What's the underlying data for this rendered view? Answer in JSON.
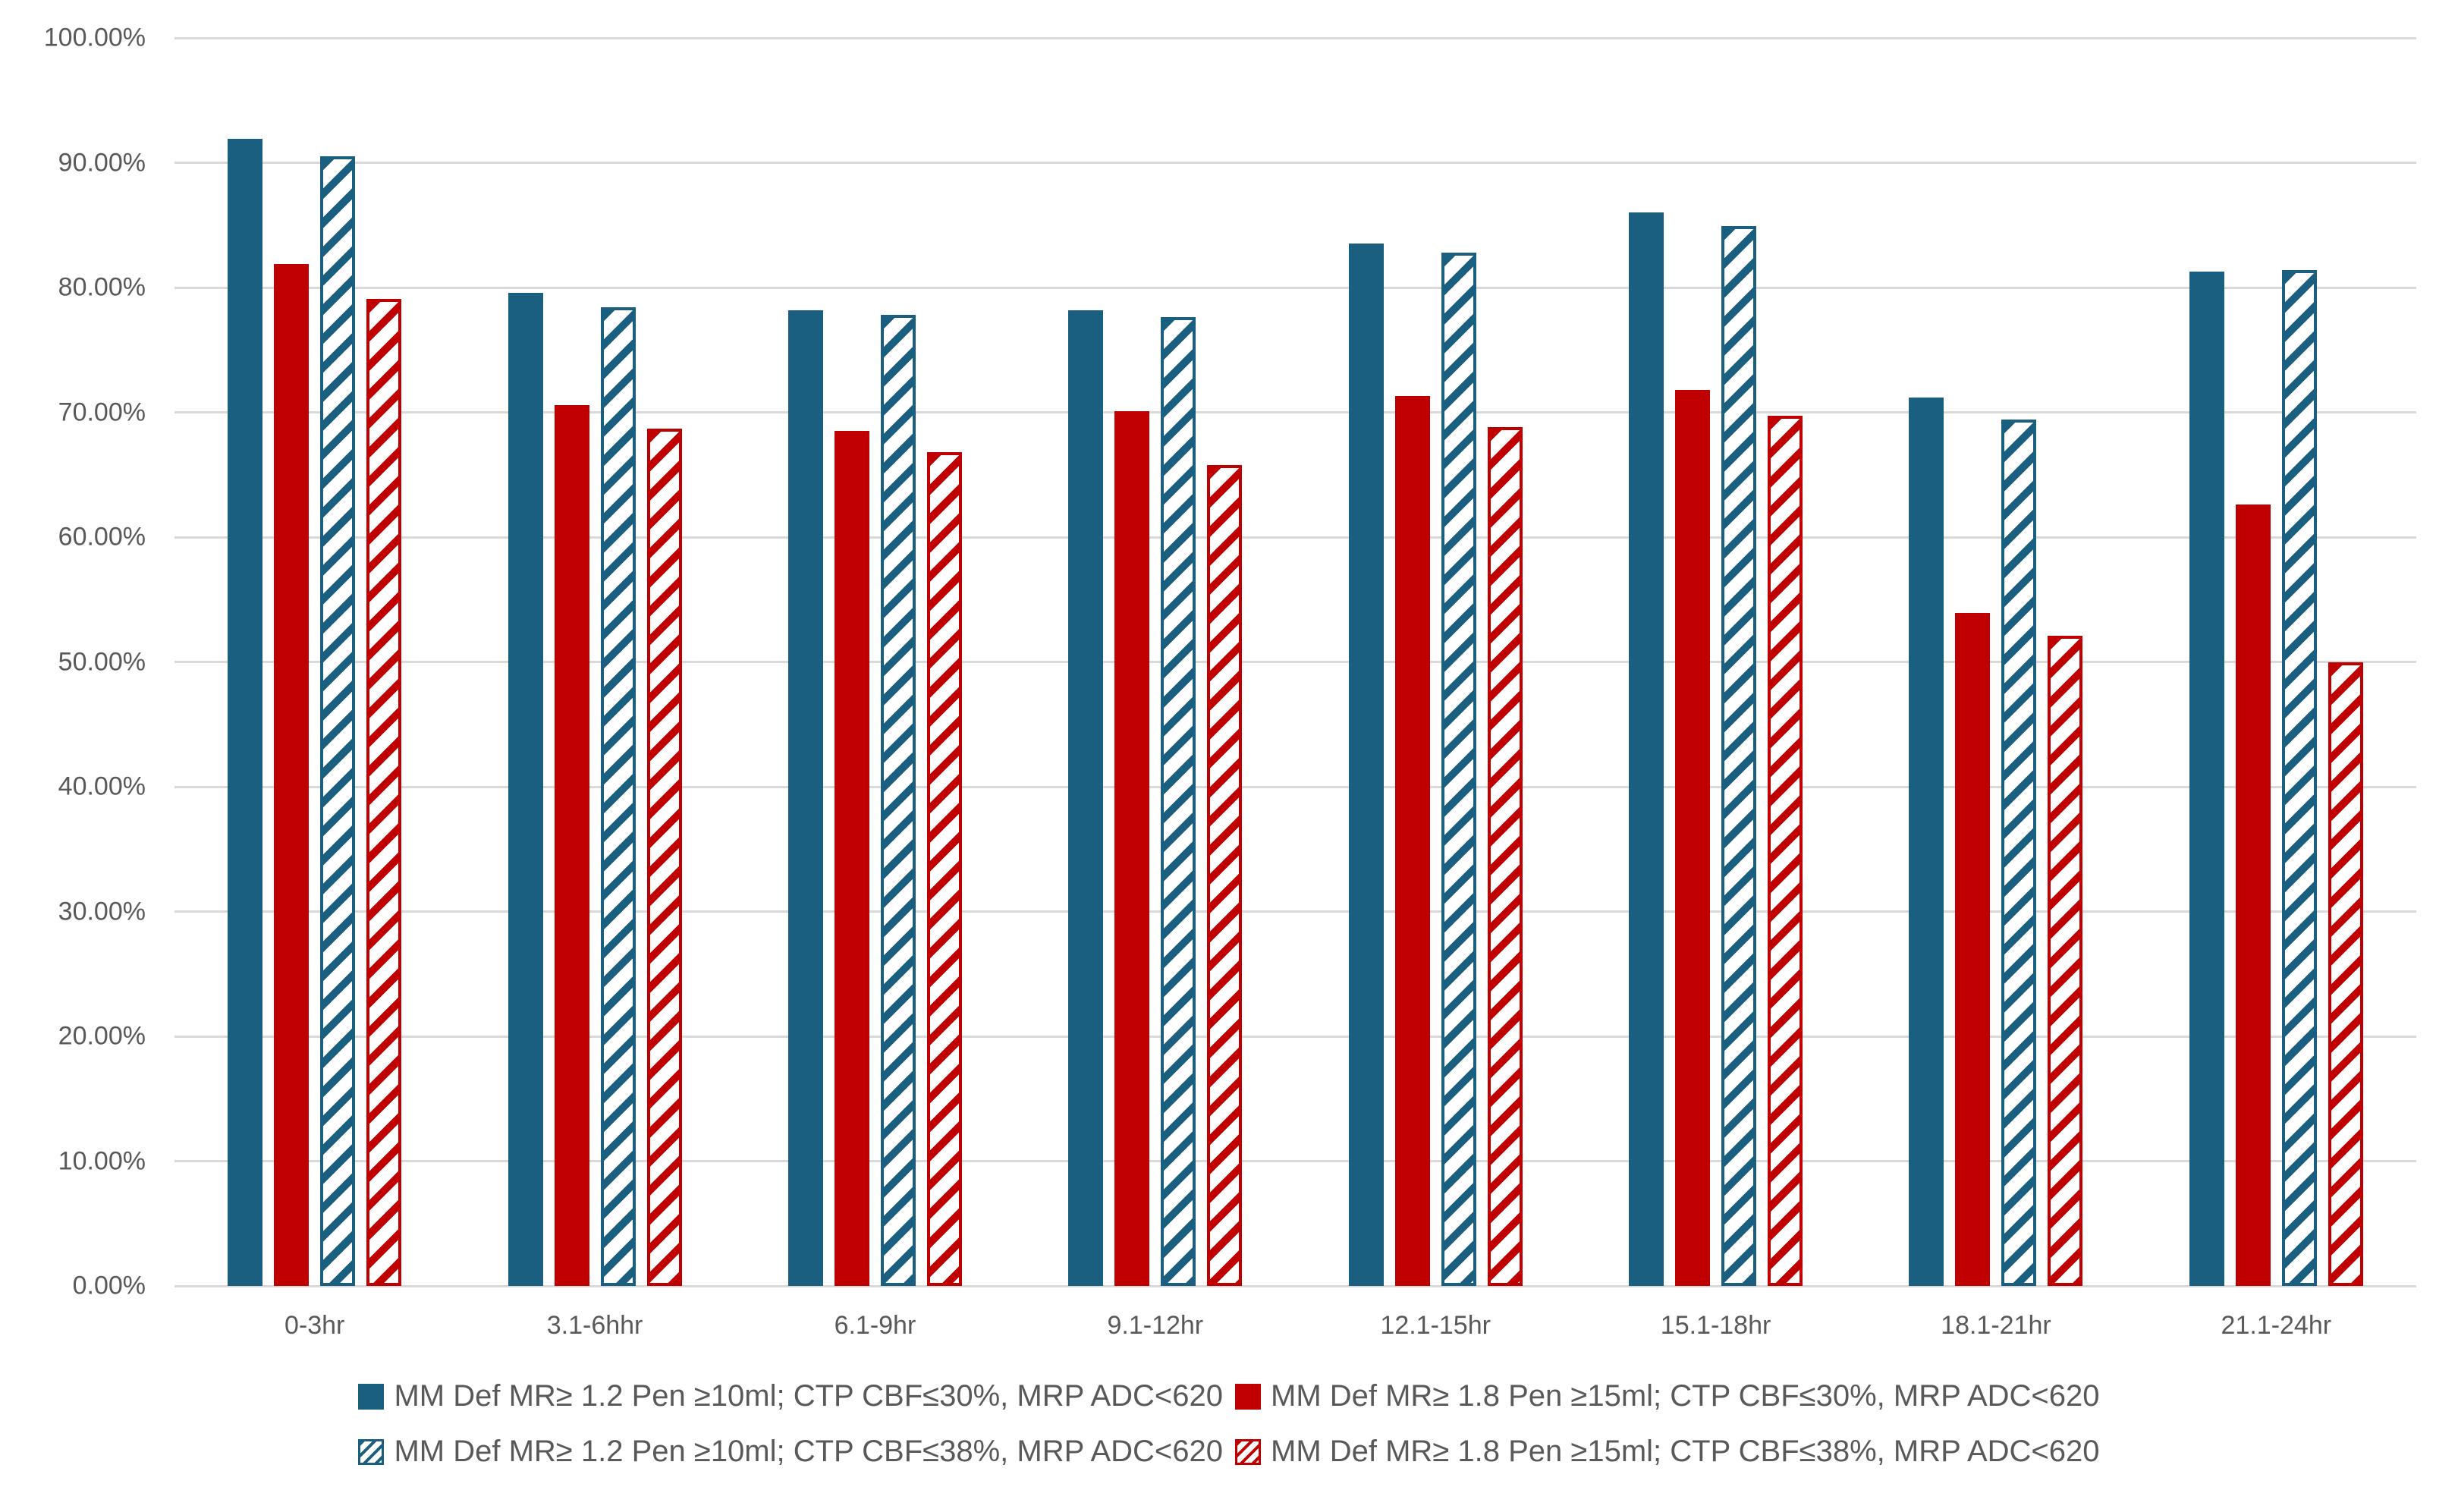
{
  "chart_data": {
    "type": "bar",
    "title": "",
    "categories": [
      "0-3hr",
      "3.1-6hhr",
      "6.1-9hr",
      "9.1-12hr",
      "12.1-15hr",
      "15.1-18hr",
      "18.1-21hr",
      "21.1-24hr"
    ],
    "series": [
      {
        "name": "MM Def MR≥ 1.2 Pen ≥10ml; CTP CBF≤30%, MRP ADC<620",
        "pattern": "solid",
        "color": "#1A5E80",
        "values": [
          91.9,
          79.6,
          78.2,
          78.2,
          83.5,
          86.0,
          71.2,
          81.3
        ]
      },
      {
        "name": "MM Def MR≥ 1.8 Pen ≥15ml; CTP CBF≤30%, MRP ADC<620",
        "pattern": "solid",
        "color": "#C00000",
        "values": [
          81.9,
          70.6,
          68.5,
          70.1,
          71.3,
          71.8,
          53.9,
          62.6
        ]
      },
      {
        "name": "MM Def MR≥ 1.2 Pen ≥10ml; CTP CBF≤38%, MRP ADC<620",
        "pattern": "hatched",
        "color": "#1A5E80",
        "values": [
          90.5,
          78.4,
          77.8,
          77.6,
          82.8,
          84.9,
          69.4,
          81.4
        ]
      },
      {
        "name": "MM Def MR≥ 1.8 Pen ≥15ml; CTP CBF≤38%, MRP ADC<620",
        "pattern": "hatched",
        "color": "#C00000",
        "values": [
          79.1,
          68.7,
          66.8,
          65.8,
          68.8,
          69.7,
          52.1,
          50.0
        ]
      }
    ],
    "ylim": [
      0,
      100
    ],
    "ytick_step": 10,
    "yticks": [
      "0.00%",
      "10.00%",
      "20.00%",
      "30.00%",
      "40.00%",
      "50.00%",
      "60.00%",
      "70.00%",
      "80.00%",
      "90.00%",
      "100.00%"
    ],
    "xlabel": "",
    "ylabel": "",
    "grid": true,
    "legend_position": "bottom",
    "legend_rows": [
      [
        0,
        1
      ],
      [
        2,
        3
      ]
    ]
  },
  "colors": {
    "background": "#FFFFFF",
    "gridline": "#D9D9D9",
    "axis_text": "#595959",
    "legend_text": "#595959",
    "series_blue": "#1A5E80",
    "series_red": "#C00000"
  }
}
